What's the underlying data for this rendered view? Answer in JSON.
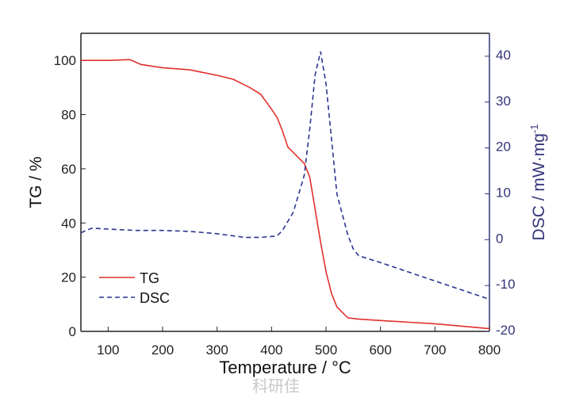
{
  "chart_data": {
    "type": "line",
    "xlabel": "Temperature / °C",
    "ylabel": "TG / %",
    "y2label": "DSC / mW·mg",
    "y2label_sup": "-1",
    "xlim": [
      50,
      800
    ],
    "ylim": [
      0,
      110
    ],
    "y2lim": [
      -20,
      45
    ],
    "xticks": [
      100,
      200,
      300,
      400,
      500,
      600,
      700,
      800
    ],
    "yticks": [
      0,
      20,
      40,
      60,
      80,
      100
    ],
    "y2ticks": [
      -20,
      -10,
      0,
      10,
      20,
      30,
      40
    ],
    "legend_position": "bottom-left",
    "series": [
      {
        "name": "TG",
        "axis": "left",
        "style": "solid",
        "color": "#e0302c",
        "x": [
          50,
          100,
          140,
          160,
          200,
          250,
          300,
          330,
          360,
          380,
          400,
          410,
          420,
          430,
          440,
          460,
          470,
          480,
          490,
          500,
          510,
          520,
          540,
          560,
          600,
          700,
          800
        ],
        "y": [
          100,
          100,
          100.3,
          98.5,
          97.3,
          96.5,
          94.5,
          93,
          90,
          87.5,
          82,
          79,
          74,
          68,
          66,
          62,
          57,
          45,
          33,
          22,
          14,
          9,
          5,
          4.5,
          4,
          2.8,
          1
        ]
      },
      {
        "name": "DSC",
        "axis": "right",
        "style": "dashed",
        "color": "#2b3590",
        "x": [
          50,
          70,
          100,
          150,
          200,
          250,
          300,
          350,
          380,
          410,
          420,
          440,
          460,
          470,
          480,
          490,
          500,
          510,
          520,
          540,
          550,
          560,
          600,
          700,
          800
        ],
        "y": [
          1.5,
          2.5,
          2.3,
          2,
          2,
          1.8,
          1.3,
          0.5,
          0.5,
          0.8,
          2,
          6,
          14,
          24,
          36,
          41,
          34,
          22,
          10,
          1,
          -2,
          -3.5,
          -5,
          -9,
          -13
        ]
      }
    ]
  },
  "watermark": "科研佳"
}
